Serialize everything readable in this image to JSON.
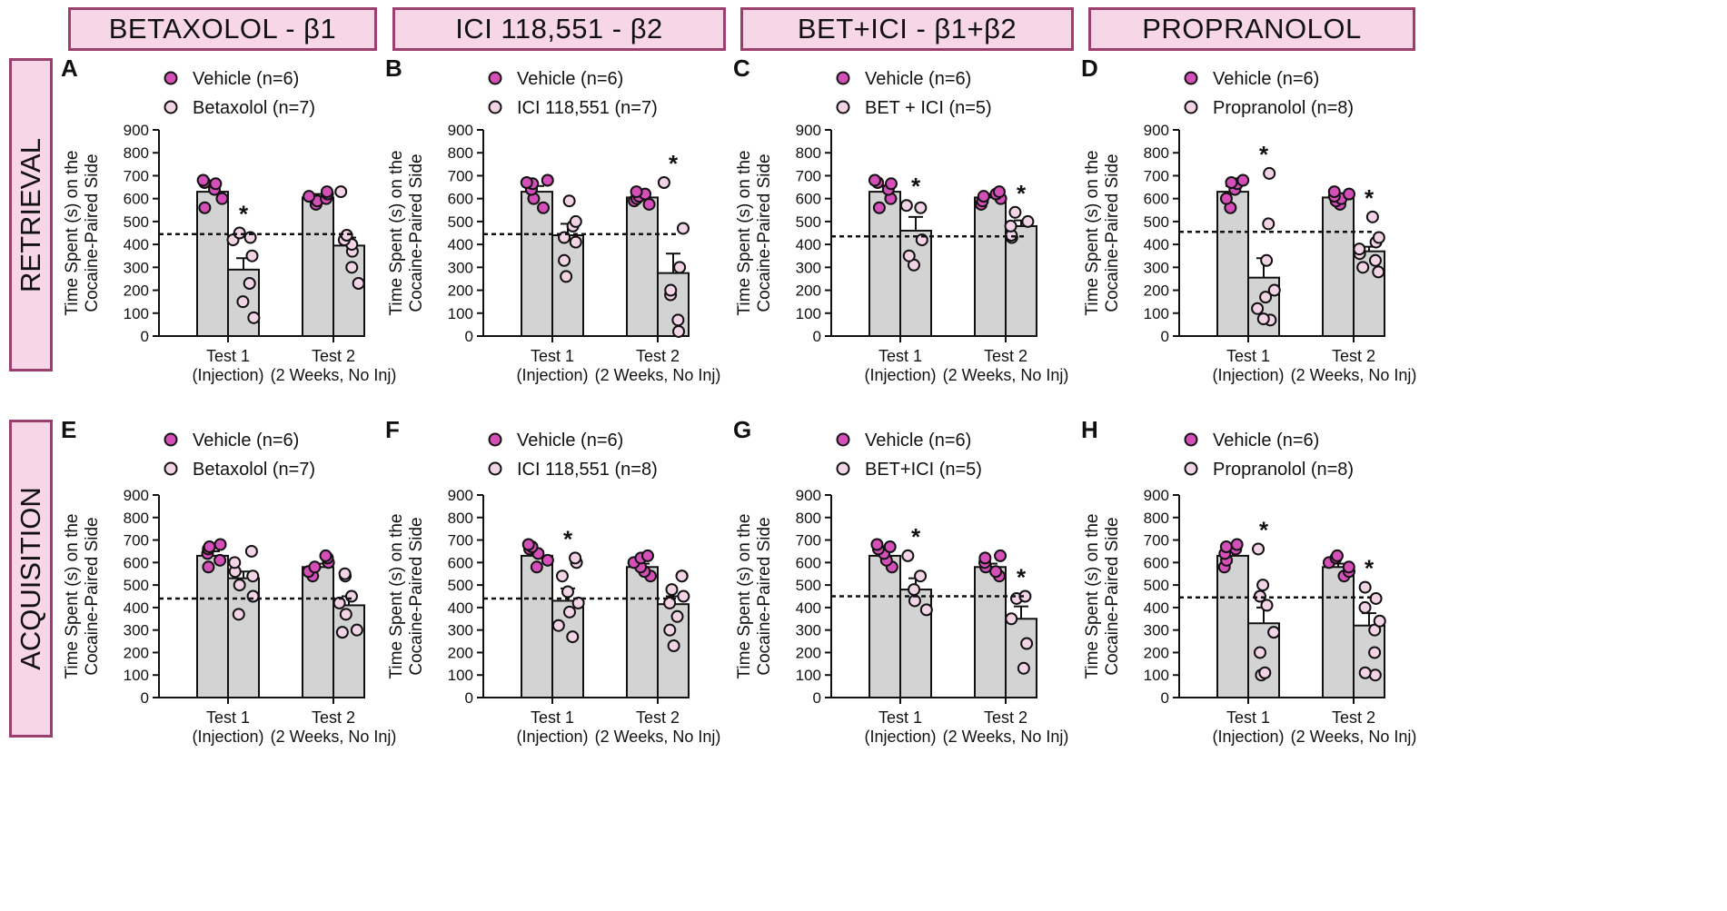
{
  "column_headers": [
    "BETAXOLOL - β1",
    "ICI 118,551 - β2",
    "BET+ICI - β1+β2",
    "PROPRANOLOL"
  ],
  "row_headers": [
    "RETRIEVAL",
    "ACQUISITION"
  ],
  "colors": {
    "vehicle_fill": "#d44fb8",
    "drug_fill": "#f2d4e6",
    "bar_fill": "#d3d3d3",
    "header_fill": "#f7d6e8",
    "header_border": "#9b3f6e"
  },
  "chart_data": [
    {
      "panel": "A",
      "type": "bar",
      "ylabel": "Time Spent (s) on the Cocaine-Paired Side",
      "ylim": [
        0,
        900
      ],
      "yticks": [
        "0",
        "100",
        "200",
        "300",
        "400",
        "500",
        "600",
        "700",
        "800",
        "900"
      ],
      "categories": [
        {
          "line1": "Test 1",
          "line2": "(Injection)"
        },
        {
          "line1": "Test 2",
          "line2": "(2 Weeks, No Inj)"
        }
      ],
      "legend": [
        "Vehicle (n=6)",
        "Betaxolol (n=7)"
      ],
      "baseline": 445,
      "series": [
        {
          "name": "Vehicle",
          "values": [
            630,
            605
          ],
          "errors": [
            25,
            15
          ],
          "points": [
            [
              560,
              600,
              640,
              665,
              670,
              680
            ],
            [
              575,
              590,
              600,
              610,
              620,
              630
            ]
          ],
          "sig": [
            "",
            ""
          ]
        },
        {
          "name": "Betaxolol",
          "values": [
            290,
            395
          ],
          "errors": [
            50,
            35
          ],
          "points": [
            [
              80,
              150,
              230,
              350,
              420,
              430,
              450
            ],
            [
              230,
              300,
              370,
              400,
              420,
              440,
              630
            ]
          ],
          "sig": [
            "*",
            ""
          ]
        }
      ]
    },
    {
      "panel": "B",
      "type": "bar",
      "ylabel": "Time Spent (s) on the Cocaine-Paired Side",
      "ylim": [
        0,
        900
      ],
      "yticks": [
        "0",
        "100",
        "200",
        "300",
        "400",
        "500",
        "600",
        "700",
        "800",
        "900"
      ],
      "categories": [
        {
          "line1": "Test 1",
          "line2": "(Injection)"
        },
        {
          "line1": "Test 2",
          "line2": "(2 Weeks, No Inj)"
        }
      ],
      "legend": [
        "Vehicle (n=6)",
        "ICI 118,551 (n=7)"
      ],
      "baseline": 445,
      "series": [
        {
          "name": "Vehicle",
          "values": [
            630,
            605
          ],
          "errors": [
            25,
            15
          ],
          "points": [
            [
              560,
              600,
              640,
              665,
              670,
              680
            ],
            [
              575,
              590,
              600,
              610,
              620,
              630
            ]
          ],
          "sig": [
            "",
            ""
          ]
        },
        {
          "name": "ICI 118,551",
          "values": [
            440,
            275
          ],
          "errors": [
            50,
            85
          ],
          "points": [
            [
              260,
              330,
              410,
              430,
              480,
              500,
              590
            ],
            [
              20,
              70,
              180,
              200,
              300,
              470,
              670
            ]
          ],
          "sig": [
            "",
            "*"
          ]
        }
      ]
    },
    {
      "panel": "C",
      "type": "bar",
      "ylabel": "Time Spent (s) on the Cocaine-Paired Side",
      "ylim": [
        0,
        900
      ],
      "yticks": [
        "0",
        "100",
        "200",
        "300",
        "400",
        "500",
        "600",
        "700",
        "800",
        "900"
      ],
      "categories": [
        {
          "line1": "Test 1",
          "line2": "(Injection)"
        },
        {
          "line1": "Test 2",
          "line2": "(2 Weeks, No Inj)"
        }
      ],
      "legend": [
        "Vehicle (n=6)",
        "BET + ICI (n=5)"
      ],
      "baseline": 435,
      "series": [
        {
          "name": "Vehicle",
          "values": [
            630,
            605
          ],
          "errors": [
            25,
            15
          ],
          "points": [
            [
              560,
              600,
              640,
              665,
              670,
              680
            ],
            [
              575,
              590,
              600,
              610,
              620,
              630
            ]
          ],
          "sig": [
            "",
            ""
          ]
        },
        {
          "name": "BET + ICI",
          "values": [
            460,
            480
          ],
          "errors": [
            60,
            25
          ],
          "points": [
            [
              310,
              350,
              420,
              560,
              570
            ],
            [
              430,
              440,
              480,
              500,
              540
            ]
          ],
          "sig": [
            "*",
            "*"
          ]
        }
      ]
    },
    {
      "panel": "D",
      "type": "bar",
      "ylabel": "Time Spent (s) on the Cocaine-Paired Side",
      "ylim": [
        0,
        900
      ],
      "yticks": [
        "0",
        "100",
        "200",
        "300",
        "400",
        "500",
        "600",
        "700",
        "800",
        "900"
      ],
      "categories": [
        {
          "line1": "Test 1",
          "line2": "(Injection)"
        },
        {
          "line1": "Test 2",
          "line2": "(2 Weeks, No Inj)"
        }
      ],
      "legend": [
        "Vehicle (n=6)",
        "Propranolol (n=8)"
      ],
      "baseline": 455,
      "series": [
        {
          "name": "Vehicle",
          "values": [
            630,
            605
          ],
          "errors": [
            25,
            15
          ],
          "points": [
            [
              560,
              600,
              640,
              665,
              670,
              680
            ],
            [
              575,
              590,
              600,
              610,
              620,
              630
            ]
          ],
          "sig": [
            "",
            ""
          ]
        },
        {
          "name": "Propranolol",
          "values": [
            255,
            370
          ],
          "errors": [
            85,
            20
          ],
          "points": [
            [
              70,
              75,
              120,
              170,
              200,
              330,
              490,
              710
            ],
            [
              280,
              300,
              330,
              360,
              380,
              410,
              430,
              520
            ]
          ],
          "sig": [
            "*",
            "*"
          ]
        }
      ]
    },
    {
      "panel": "E",
      "type": "bar",
      "ylabel": "Time Spent (s) on the Cocaine-Paired Side",
      "ylim": [
        0,
        900
      ],
      "yticks": [
        "0",
        "100",
        "200",
        "300",
        "400",
        "500",
        "600",
        "700",
        "800",
        "900"
      ],
      "categories": [
        {
          "line1": "Test 1",
          "line2": "(Injection)"
        },
        {
          "line1": "Test 2",
          "line2": "(2 Weeks, No Inj)"
        }
      ],
      "legend": [
        "Vehicle (n=6)",
        "Betaxolol (n=7)"
      ],
      "baseline": 440,
      "series": [
        {
          "name": "Vehicle",
          "values": [
            630,
            580
          ],
          "errors": [
            20,
            15
          ],
          "points": [
            [
              580,
              610,
              640,
              660,
              670,
              680
            ],
            [
              540,
              560,
              580,
              600,
              620,
              630
            ]
          ],
          "sig": [
            "",
            ""
          ]
        },
        {
          "name": "Betaxolol",
          "values": [
            530,
            410
          ],
          "errors": [
            30,
            40
          ],
          "points": [
            [
              370,
              450,
              500,
              540,
              560,
              600,
              650
            ],
            [
              290,
              300,
              370,
              420,
              450,
              540,
              550
            ]
          ],
          "sig": [
            "",
            ""
          ]
        }
      ]
    },
    {
      "panel": "F",
      "type": "bar",
      "ylabel": "Time Spent (s) on the Cocaine-Paired Side",
      "ylim": [
        0,
        900
      ],
      "yticks": [
        "0",
        "100",
        "200",
        "300",
        "400",
        "500",
        "600",
        "700",
        "800",
        "900"
      ],
      "categories": [
        {
          "line1": "Test 1",
          "line2": "(Injection)"
        },
        {
          "line1": "Test 2",
          "line2": "(2 Weeks, No Inj)"
        }
      ],
      "legend": [
        "Vehicle (n=6)",
        "ICI 118,551 (n=8)"
      ],
      "baseline": 440,
      "series": [
        {
          "name": "Vehicle",
          "values": [
            630,
            580
          ],
          "errors": [
            20,
            15
          ],
          "points": [
            [
              580,
              610,
              640,
              660,
              670,
              680
            ],
            [
              540,
              560,
              580,
              600,
              620,
              630
            ]
          ],
          "sig": [
            "",
            ""
          ]
        },
        {
          "name": "ICI 118,551",
          "values": [
            430,
            415
          ],
          "errors": [
            55,
            35
          ],
          "points": [
            [
              270,
              320,
              380,
              420,
              470,
              540,
              600,
              620
            ],
            [
              230,
              300,
              360,
              420,
              450,
              480,
              540,
              540
            ]
          ],
          "sig": [
            "*",
            ""
          ]
        }
      ]
    },
    {
      "panel": "G",
      "type": "bar",
      "ylabel": "Time Spent (s) on the Cocaine-Paired Side",
      "ylim": [
        0,
        900
      ],
      "yticks": [
        "0",
        "100",
        "200",
        "300",
        "400",
        "500",
        "600",
        "700",
        "800",
        "900"
      ],
      "categories": [
        {
          "line1": "Test 1",
          "line2": "(Injection)"
        },
        {
          "line1": "Test 2",
          "line2": "(2 Weeks, No Inj)"
        }
      ],
      "legend": [
        "Vehicle (n=6)",
        "BET+ICI (n=5)"
      ],
      "baseline": 450,
      "series": [
        {
          "name": "Vehicle",
          "values": [
            630,
            580
          ],
          "errors": [
            20,
            15
          ],
          "points": [
            [
              580,
              610,
              640,
              660,
              670,
              680
            ],
            [
              540,
              560,
              580,
              600,
              620,
              630
            ]
          ],
          "sig": [
            "",
            ""
          ]
        },
        {
          "name": "BET+ICI",
          "values": [
            480,
            350
          ],
          "errors": [
            50,
            55
          ],
          "points": [
            [
              390,
              430,
              480,
              540,
              630
            ],
            [
              130,
              240,
              350,
              440,
              450
            ]
          ],
          "sig": [
            "*",
            "*"
          ]
        }
      ]
    },
    {
      "panel": "H",
      "type": "bar",
      "ylabel": "Time Spent (s) on the Cocaine-Paired Side",
      "ylim": [
        0,
        900
      ],
      "yticks": [
        "0",
        "100",
        "200",
        "300",
        "400",
        "500",
        "600",
        "700",
        "800",
        "900"
      ],
      "categories": [
        {
          "line1": "Test 1",
          "line2": "(Injection)"
        },
        {
          "line1": "Test 2",
          "line2": "(2 Weeks, No Inj)"
        }
      ],
      "legend": [
        "Vehicle (n=6)",
        "Propranolol (n=8)"
      ],
      "baseline": 445,
      "series": [
        {
          "name": "Vehicle",
          "values": [
            630,
            580
          ],
          "errors": [
            20,
            15
          ],
          "points": [
            [
              580,
              610,
              640,
              660,
              670,
              680
            ],
            [
              540,
              560,
              580,
              600,
              620,
              630
            ]
          ],
          "sig": [
            "",
            ""
          ]
        },
        {
          "name": "Propranolol",
          "values": [
            330,
            320
          ],
          "errors": [
            70,
            55
          ],
          "points": [
            [
              100,
              110,
              200,
              290,
              410,
              450,
              500,
              660
            ],
            [
              100,
              110,
              200,
              300,
              340,
              400,
              440,
              490
            ]
          ],
          "sig": [
            "*",
            "*"
          ]
        }
      ]
    }
  ]
}
